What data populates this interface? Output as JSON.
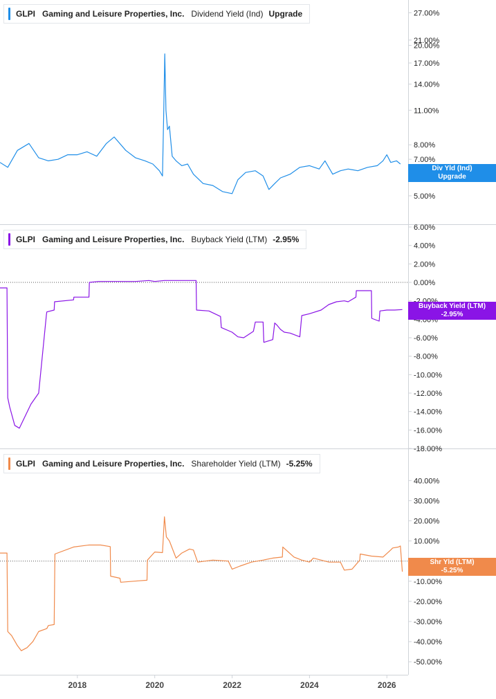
{
  "colors": {
    "dividend": "#1f8ee8",
    "buyback": "#8a14e6",
    "shareholder": "#f08a4b",
    "axis": "#cfd3d8",
    "text": "#222222"
  },
  "chart_data": [
    {
      "type": "line",
      "legend": {
        "ticker": "GLPI",
        "company": "Gaming and Leisure Properties, Inc.",
        "metric": "Dividend Yield (Ind)",
        "value": "Upgrade"
      },
      "callout": {
        "line1": "Div Yld (Ind)",
        "line2": "Upgrade"
      },
      "y_scale": "log",
      "ylim": [
        4.6,
        28.5
      ],
      "yticks": [
        {
          "v": 27,
          "label": "27.00%"
        },
        {
          "v": 21,
          "label": "21.00%"
        },
        {
          "v": 20,
          "label": "20.00%"
        },
        {
          "v": 17,
          "label": "17.00%"
        },
        {
          "v": 14,
          "label": "14.00%"
        },
        {
          "v": 11,
          "label": "11.00%"
        },
        {
          "v": 8,
          "label": "8.00%"
        },
        {
          "v": 7,
          "label": "7.00%"
        },
        {
          "v": 5,
          "label": "5.00%"
        }
      ],
      "zero_line": false,
      "x": [
        2016.0,
        2016.2,
        2016.45,
        2016.75,
        2017.0,
        2017.25,
        2017.5,
        2017.75,
        2018.0,
        2018.25,
        2018.5,
        2018.75,
        2018.95,
        2019.25,
        2019.5,
        2019.75,
        2019.95,
        2020.12,
        2020.2,
        2020.23,
        2020.26,
        2020.29,
        2020.33,
        2020.38,
        2020.45,
        2020.55,
        2020.7,
        2020.85,
        2021.0,
        2021.25,
        2021.5,
        2021.75,
        2022.0,
        2022.15,
        2022.35,
        2022.6,
        2022.8,
        2022.95,
        2023.1,
        2023.25,
        2023.5,
        2023.75,
        2024.0,
        2024.25,
        2024.4,
        2024.6,
        2024.8,
        2025.0,
        2025.25,
        2025.5,
        2025.75,
        2025.9,
        2026.0,
        2026.1,
        2026.25,
        2026.35
      ],
      "values": [
        6.8,
        6.5,
        7.6,
        8.1,
        7.1,
        6.9,
        7.0,
        7.3,
        7.3,
        7.5,
        7.2,
        8.1,
        8.6,
        7.6,
        7.1,
        6.9,
        6.7,
        6.3,
        6.0,
        10.5,
        18.5,
        11.0,
        9.2,
        9.5,
        7.2,
        6.9,
        6.6,
        6.7,
        6.1,
        5.6,
        5.5,
        5.2,
        5.1,
        5.8,
        6.2,
        6.3,
        6.0,
        5.3,
        5.6,
        5.9,
        6.1,
        6.5,
        6.6,
        6.4,
        6.9,
        6.1,
        6.3,
        6.4,
        6.3,
        6.5,
        6.6,
        6.9,
        7.3,
        6.8,
        6.9,
        6.7
      ]
    },
    {
      "type": "line",
      "legend": {
        "ticker": "GLPI",
        "company": "Gaming and Leisure Properties, Inc.",
        "metric": "Buyback Yield (LTM)",
        "value": "-2.95%"
      },
      "callout": {
        "line1": "Buyback Yield (LTM)",
        "line2": "-2.95%"
      },
      "y_scale": "linear",
      "ylim": [
        -18.0,
        6.0
      ],
      "yticks": [
        {
          "v": 6,
          "label": "6.00%"
        },
        {
          "v": 4,
          "label": "4.00%"
        },
        {
          "v": 2,
          "label": "2.00%"
        },
        {
          "v": 0,
          "label": "0.00%"
        },
        {
          "v": -2,
          "label": "-2.00%"
        },
        {
          "v": -4,
          "label": "-4.00%"
        },
        {
          "v": -6,
          "label": "-6.00%"
        },
        {
          "v": -8,
          "label": "-8.00%"
        },
        {
          "v": -10,
          "label": "-10.00%"
        },
        {
          "v": -12,
          "label": "-12.00%"
        },
        {
          "v": -14,
          "label": "-14.00%"
        },
        {
          "v": -16,
          "label": "-16.00%"
        },
        {
          "v": -18,
          "label": "-18.00%"
        }
      ],
      "zero_line": true,
      "x": [
        2016.0,
        2016.18,
        2016.2,
        2016.25,
        2016.38,
        2016.5,
        2016.65,
        2016.8,
        2017.0,
        2017.2,
        2017.21,
        2017.4,
        2017.41,
        2017.9,
        2017.91,
        2018.3,
        2018.31,
        2018.55,
        2018.56,
        2019.5,
        2019.85,
        2020.0,
        2020.25,
        2020.5,
        2021.07,
        2021.08,
        2021.4,
        2021.55,
        2021.7,
        2021.72,
        2022.0,
        2022.15,
        2022.3,
        2022.55,
        2022.6,
        2022.8,
        2022.82,
        2023.05,
        2023.1,
        2023.15,
        2023.25,
        2023.35,
        2023.5,
        2023.75,
        2023.8,
        2024.0,
        2024.3,
        2024.5,
        2024.7,
        2024.9,
        2025.0,
        2025.2,
        2025.21,
        2025.6,
        2025.61,
        2025.8,
        2025.82,
        2026.0,
        2026.2,
        2026.4
      ],
      "values": [
        -0.6,
        -0.6,
        -12.5,
        -13.5,
        -15.5,
        -15.8,
        -14.5,
        -13.2,
        -12.0,
        -3.5,
        -3.2,
        -3.0,
        -2.1,
        -1.9,
        -1.6,
        -1.6,
        0.0,
        0.1,
        0.1,
        0.1,
        0.2,
        0.1,
        0.2,
        0.2,
        0.2,
        -3.0,
        -3.1,
        -3.4,
        -3.7,
        -4.9,
        -5.4,
        -5.9,
        -6.0,
        -5.3,
        -4.3,
        -4.3,
        -6.5,
        -6.2,
        -4.4,
        -4.6,
        -5.1,
        -5.4,
        -5.5,
        -5.9,
        -3.6,
        -3.4,
        -3.0,
        -2.4,
        -2.1,
        -2.0,
        -2.1,
        -1.6,
        -0.9,
        -0.9,
        -3.9,
        -4.2,
        -3.1,
        -3.0,
        -3.0,
        -2.95
      ]
    },
    {
      "type": "line",
      "legend": {
        "ticker": "GLPI",
        "company": "Gaming and Leisure Properties, Inc.",
        "metric": "Shareholder Yield (LTM)",
        "value": "-5.25%"
      },
      "callout": {
        "line1": "Shr Yld (LTM)",
        "line2": "-5.25%"
      },
      "y_scale": "linear",
      "ylim": [
        -52.0,
        47.0
      ],
      "yticks": [
        {
          "v": 40,
          "label": "40.00%"
        },
        {
          "v": 30,
          "label": "30.00%"
        },
        {
          "v": 20,
          "label": "20.00%"
        },
        {
          "v": 10,
          "label": "10.00%"
        },
        {
          "v": 0,
          "label": "0.00%"
        },
        {
          "v": -10,
          "label": "-10.00%"
        },
        {
          "v": -20,
          "label": "-20.00%"
        },
        {
          "v": -30,
          "label": "-30.00%"
        },
        {
          "v": -40,
          "label": "-40.00%"
        },
        {
          "v": -50,
          "label": "-50.00%"
        }
      ],
      "zero_line": true,
      "x": [
        2016.0,
        2016.18,
        2016.2,
        2016.3,
        2016.45,
        2016.55,
        2016.7,
        2016.85,
        2017.0,
        2017.21,
        2017.25,
        2017.4,
        2017.42,
        2017.9,
        2018.3,
        2018.6,
        2018.85,
        2018.86,
        2019.1,
        2019.12,
        2019.6,
        2019.8,
        2019.81,
        2020.0,
        2020.2,
        2020.25,
        2020.3,
        2020.38,
        2020.55,
        2020.7,
        2020.9,
        2021.0,
        2021.1,
        2021.11,
        2021.5,
        2021.9,
        2022.0,
        2022.2,
        2022.5,
        2022.8,
        2023.05,
        2023.3,
        2023.31,
        2023.6,
        2023.8,
        2024.0,
        2024.1,
        2024.3,
        2024.5,
        2024.8,
        2024.9,
        2025.1,
        2025.3,
        2025.31,
        2025.6,
        2025.9,
        2026.1,
        2026.15,
        2026.3,
        2026.35,
        2026.4
      ],
      "values": [
        4.0,
        4.0,
        -35.0,
        -37.0,
        -42.0,
        -44.5,
        -43.0,
        -40.0,
        -35.0,
        -33.5,
        -32.0,
        -31.5,
        3.5,
        7.0,
        8.0,
        8.0,
        7.2,
        -7.5,
        -8.5,
        -10.5,
        -9.8,
        -9.5,
        0.5,
        4.5,
        4.2,
        22.0,
        12.0,
        10.0,
        1.5,
        4.0,
        6.0,
        5.5,
        0.0,
        -0.5,
        0.5,
        0.0,
        -4.0,
        -2.5,
        -0.5,
        0.5,
        1.5,
        2.0,
        7.0,
        2.0,
        0.5,
        -0.5,
        1.5,
        0.5,
        -0.5,
        -0.5,
        -4.5,
        -4.0,
        0.5,
        3.5,
        2.5,
        2.0,
        5.5,
        6.5,
        7.0,
        7.5,
        -5.25
      ]
    }
  ],
  "x_axis": {
    "xlim": [
      2016.0,
      2026.55
    ],
    "ticks": [
      {
        "v": 2018,
        "label": "2018"
      },
      {
        "v": 2020,
        "label": "2020"
      },
      {
        "v": 2022,
        "label": "2022"
      },
      {
        "v": 2024,
        "label": "2024"
      },
      {
        "v": 2026,
        "label": "2026"
      }
    ]
  }
}
